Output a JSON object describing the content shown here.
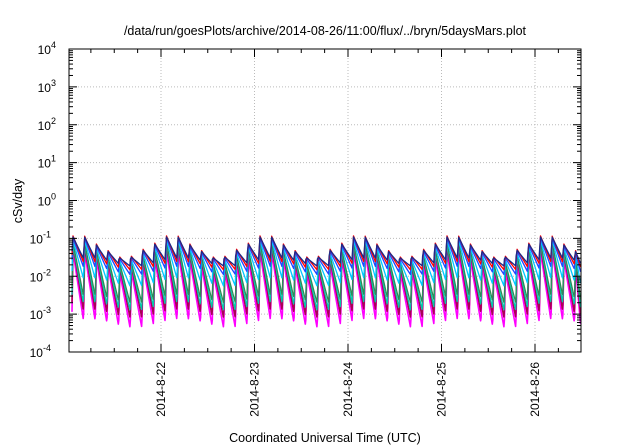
{
  "chart_data": {
    "type": "line",
    "title": "/data/run/goesPlots/archive/2014-08-26/11:00/flux/../bryn/5daysMars.plot",
    "xlabel": "Coordinated Universal Time (UTC)",
    "ylabel": "cSv/day",
    "yscale": "log",
    "ylim": [
      0.0001,
      10000
    ],
    "xlim_days": [
      "2014-08-21 03:00",
      "2014-08-26 13:00"
    ],
    "grid": true,
    "legend": "none",
    "x_tick_labels": [
      "2014-8-22",
      "2014-8-23",
      "2014-8-24",
      "2014-8-25",
      "2014-8-26"
    ],
    "y_ticks": [
      {
        "base": "10",
        "exp": "-4"
      },
      {
        "base": "10",
        "exp": "-3"
      },
      {
        "base": "10",
        "exp": "-2"
      },
      {
        "base": "10",
        "exp": "-1"
      },
      {
        "base": "10",
        "exp": "0"
      },
      {
        "base": "10",
        "exp": "1"
      },
      {
        "base": "10",
        "exp": "2"
      },
      {
        "base": "10",
        "exp": "3"
      },
      {
        "base": "10",
        "exp": "4"
      }
    ],
    "pattern": {
      "cycle_hours": 3,
      "description": "sawtooth: sharp rise each cycle then decay",
      "series": [
        {
          "color": "#ff00ff",
          "peak": 0.035,
          "trough": 0.0005
        },
        {
          "color": "#aa0055",
          "peak": 0.05,
          "trough": 0.0009
        },
        {
          "color": "#00ccaa",
          "peak": 0.055,
          "trough": 0.0014
        },
        {
          "color": "#2e8b57",
          "peak": 0.06,
          "trough": 0.0022
        },
        {
          "color": "#00c8ff",
          "peak": 0.07,
          "trough": 0.006
        },
        {
          "color": "#2244ff",
          "peak": 0.08,
          "trough": 0.012
        },
        {
          "color": "#ff0000",
          "peak": 0.09,
          "trough": 0.016
        },
        {
          "color": "#1a2a8a",
          "peak": 0.085,
          "trough": 0.02
        }
      ]
    }
  }
}
